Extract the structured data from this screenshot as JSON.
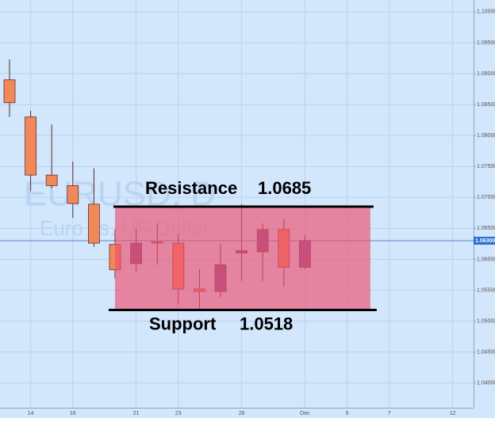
{
  "chart_data": {
    "type": "candlestick",
    "watermark": [
      "EURUSD, D",
      "Euro vs. US Dollar"
    ],
    "categories": [
      null,
      "14",
      null,
      "16",
      null,
      null,
      "21",
      null,
      "23",
      null,
      null,
      "26",
      null,
      null,
      "Dec",
      null,
      "5",
      null,
      "7",
      null,
      null,
      "12",
      null
    ],
    "open": [
      1.089,
      1.083,
      1.0736,
      1.0719,
      1.0689,
      1.0624,
      1.0593,
      1.0628,
      1.0626,
      1.0552,
      1.0548,
      1.061,
      1.0612,
      1.0648,
      1.0587,
      null,
      null,
      null,
      null,
      null,
      null,
      null,
      null
    ],
    "high": [
      1.0923,
      1.084,
      1.0818,
      1.0758,
      1.0747,
      1.0648,
      1.065,
      1.0657,
      1.0641,
      1.0584,
      1.0626,
      1.0689,
      1.0658,
      1.0665,
      1.0639,
      null,
      null,
      null,
      null,
      null,
      null,
      null,
      null
    ],
    "low": [
      1.083,
      1.071,
      1.0715,
      1.0667,
      1.062,
      1.0569,
      1.058,
      1.0591,
      1.0527,
      1.0518,
      1.0539,
      1.0565,
      1.0565,
      1.0556,
      1.0584,
      null,
      null,
      null,
      null,
      null,
      null,
      null,
      null
    ],
    "close": [
      1.0853,
      1.0736,
      1.0719,
      1.069,
      1.0626,
      1.0583,
      1.0626,
      1.0627,
      1.0552,
      1.0548,
      1.0591,
      1.0614,
      1.0648,
      1.0587,
      1.063,
      null,
      null,
      null,
      null,
      null,
      null,
      null,
      null
    ],
    "up_color": "#7a4f94",
    "down_color": "#f0885a",
    "ylim": [
      1.036,
      1.1019
    ],
    "yticks": [
      {
        "value": 1.04,
        "label": "1.04000"
      },
      {
        "value": 1.045,
        "label": "1.04500"
      },
      {
        "value": 1.05,
        "label": "1.05000"
      },
      {
        "value": 1.055,
        "label": "1.05500"
      },
      {
        "value": 1.06,
        "label": "1.06000"
      },
      {
        "value": 1.065,
        "label": "1.06500"
      },
      {
        "value": 1.07,
        "label": "1.07000"
      },
      {
        "value": 1.075,
        "label": "1.07500"
      },
      {
        "value": 1.08,
        "label": "1.08000"
      },
      {
        "value": 1.085,
        "label": "1.08500"
      },
      {
        "value": 1.09,
        "label": "1.09000"
      },
      {
        "value": 1.095,
        "label": "1.09500"
      },
      {
        "value": 1.1,
        "label": "1.10000"
      }
    ],
    "current_price": {
      "value": 1.063,
      "label": "1.06300"
    },
    "grid": true,
    "range": {
      "color": "#f0506e",
      "resistance": {
        "label": "Resistance",
        "value": 1.0685
      },
      "support": {
        "label": "Support",
        "value": 1.0518
      }
    }
  }
}
